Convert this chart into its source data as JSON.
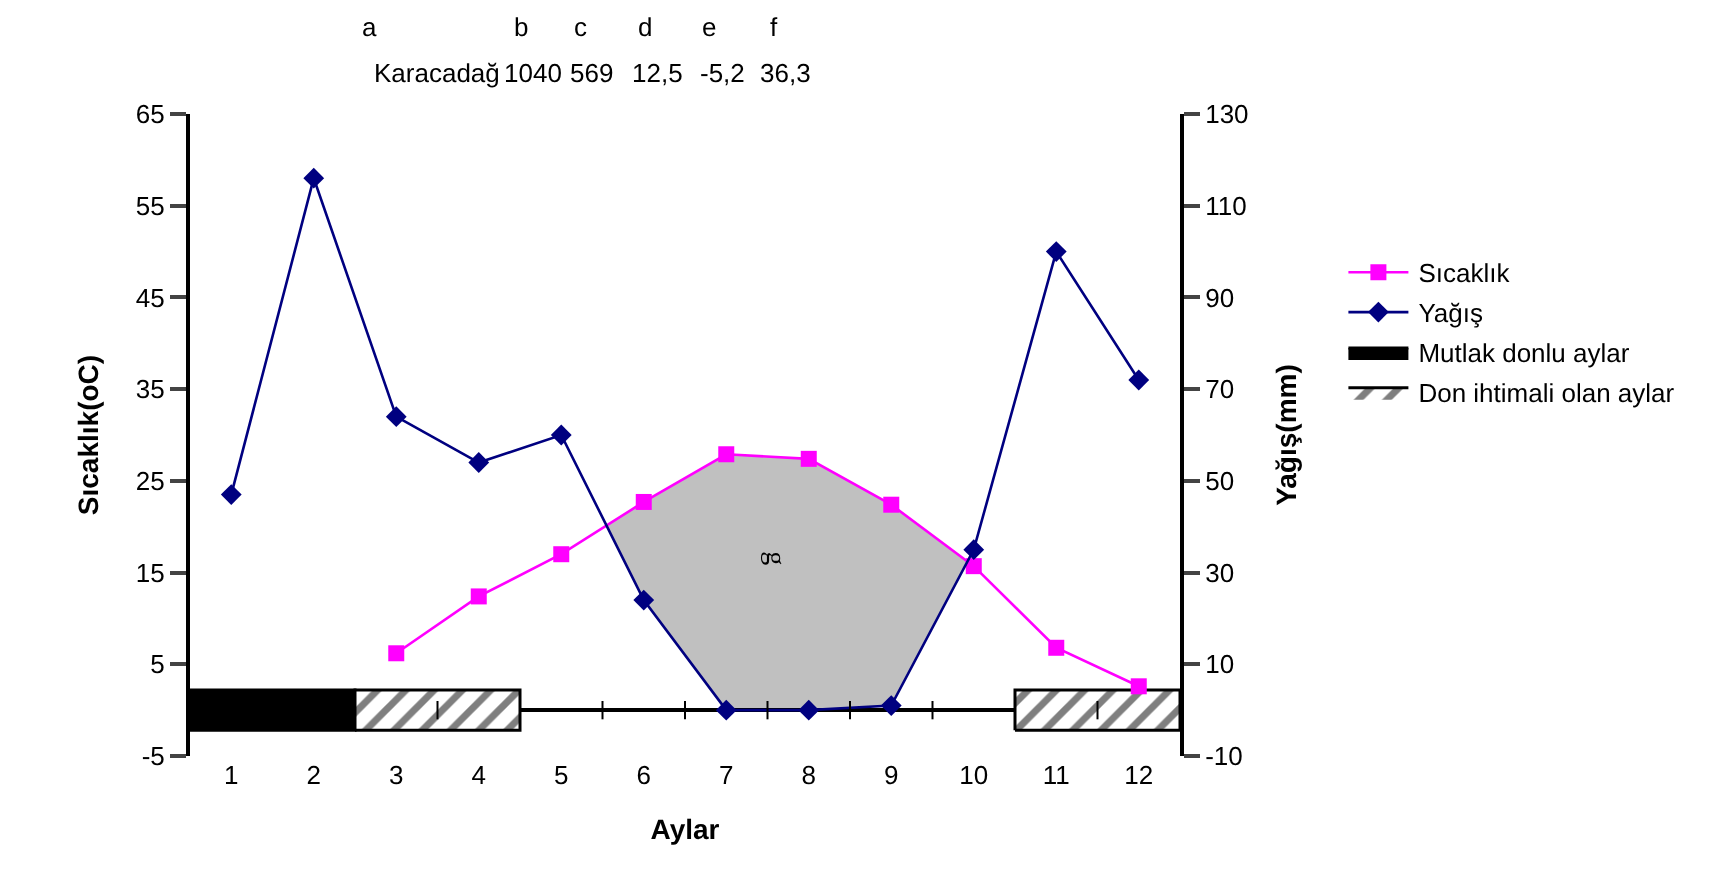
{
  "chart_data": {
    "type": "line",
    "xlabel": "Aylar",
    "ylabel": "Sıcaklık(oC)",
    "y2label": "Yağış(mm)",
    "x": [
      1,
      2,
      3,
      4,
      5,
      6,
      7,
      8,
      9,
      10,
      11,
      12
    ],
    "series": [
      {
        "name": "Sıcaklık",
        "color": "#ff00ff",
        "marker": "square",
        "values": [
          null,
          null,
          6.2,
          12.4,
          17.0,
          22.7,
          27.9,
          27.4,
          22.4,
          15.7,
          6.8,
          2.6
        ]
      },
      {
        "name": "Yağış",
        "color": "#000080",
        "marker": "diamond",
        "axis": "y2",
        "values": [
          47,
          116,
          64,
          54,
          60,
          24,
          0,
          0,
          1,
          35,
          100,
          72
        ]
      }
    ],
    "xlim": [
      0.5,
      12.5
    ],
    "xticks": [
      1,
      2,
      3,
      4,
      5,
      6,
      7,
      8,
      9,
      10,
      11,
      12
    ],
    "ylim": [
      -5,
      65
    ],
    "yticks": [
      -5,
      5,
      15,
      25,
      35,
      45,
      55,
      65
    ],
    "y2lim": [
      -10,
      130
    ],
    "y2ticks": [
      -10,
      10,
      30,
      50,
      70,
      90,
      110,
      130
    ],
    "bands": [
      {
        "axis": "x",
        "from": 0.5,
        "to": 2.5,
        "label": "Mutlak donlu aylar",
        "color": "#000000"
      },
      {
        "axis": "x",
        "from": 2.5,
        "to": 4.5,
        "label": "Don ihtimali olan aylar"
      },
      {
        "axis": "x",
        "from": 10.5,
        "to": 12.5
      }
    ],
    "annotations": [
      "a",
      "b",
      "c",
      "d",
      "e",
      "f",
      "Karacadağ",
      "1040",
      "569",
      "12,5",
      "-5,2",
      "36,3",
      "g"
    ],
    "legend": "right",
    "grid": false,
    "line_style": "solid"
  }
}
